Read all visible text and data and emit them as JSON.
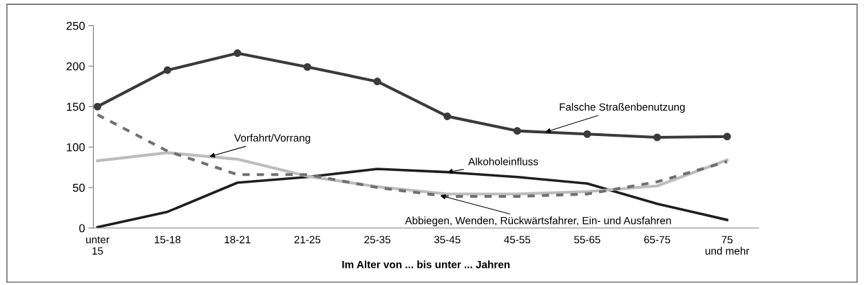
{
  "chart_data": {
    "type": "line",
    "xlabel": "Im Alter von ... bis unter ... Jahren",
    "categories": [
      "unter\n15",
      "15-18",
      "18-21",
      "21-25",
      "25-35",
      "35-45",
      "45-55",
      "55-65",
      "65-75",
      "75\nund mehr"
    ],
    "series": [
      {
        "name": "Falsche Straßenbenutzung",
        "color": "#3a3a3a",
        "marker": "circle",
        "line_style": "solid",
        "values": [
          150,
          195,
          216,
          199,
          181,
          138,
          120,
          116,
          112,
          113
        ]
      },
      {
        "name": "Alkoholeinfluss",
        "color": "#1e1e1e",
        "marker": "none",
        "line_style": "solid",
        "values": [
          1,
          20,
          56,
          63,
          73,
          69,
          63,
          55,
          30,
          10
        ]
      },
      {
        "name": "Vorfahrt/Vorrang",
        "color": "#bdbdbd",
        "marker": "none",
        "line_style": "solid",
        "values": [
          83,
          93,
          85,
          64,
          51,
          42,
          42,
          45,
          52,
          84
        ]
      },
      {
        "name": "Abbiegen, Wenden, Rückwärtsfahrer, Ein- und Ausfahren",
        "color": "#707070",
        "marker": "none",
        "line_style": "dashed",
        "values": [
          140,
          95,
          66,
          66,
          50,
          39,
          39,
          42,
          57,
          82
        ]
      }
    ],
    "ylim": [
      0,
      250
    ],
    "yticks": [
      0,
      50,
      100,
      150,
      200,
      250
    ],
    "grid": false,
    "legend": false
  }
}
